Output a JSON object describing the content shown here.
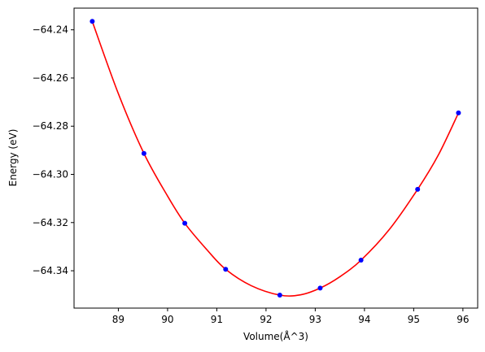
{
  "chart_data": {
    "type": "scatter",
    "title": "",
    "xlabel": "Volume(Å^3)",
    "ylabel": "Energy (eV)",
    "xlim": [
      88.1,
      96.3
    ],
    "ylim": [
      -64.3555,
      -64.231
    ],
    "xticks": [
      89,
      90,
      91,
      92,
      93,
      94,
      95,
      96
    ],
    "xtick_labels": [
      "89",
      "90",
      "91",
      "92",
      "93",
      "94",
      "95",
      "96"
    ],
    "yticks": [
      -64.34,
      -64.32,
      -64.3,
      -64.28,
      -64.26,
      -64.24
    ],
    "ytick_labels": [
      "−64.34",
      "−64.32",
      "−64.30",
      "−64.28",
      "−64.26",
      "−64.24"
    ],
    "grid": false,
    "series": [
      {
        "kind": "points",
        "color": "#0000ff",
        "x": [
          88.47,
          89.52,
          90.35,
          91.18,
          92.28,
          93.1,
          93.93,
          95.08,
          95.91
        ],
        "y": [
          -64.2365,
          -64.2913,
          -64.3203,
          -64.3394,
          -64.3501,
          -64.3472,
          -64.3356,
          -64.3062,
          -64.2745
        ]
      },
      {
        "kind": "fit-curve",
        "color": "#ff0000",
        "x": [
          88.47,
          89.0,
          89.52,
          90.0,
          90.35,
          90.8,
          91.18,
          91.7,
          92.28,
          92.7,
          93.1,
          93.5,
          93.93,
          94.5,
          95.08,
          95.5,
          95.91
        ],
        "y": [
          -64.2365,
          -64.2665,
          -64.2913,
          -64.309,
          -64.3203,
          -64.3313,
          -64.3394,
          -64.3462,
          -64.3501,
          -64.35,
          -64.3472,
          -64.3425,
          -64.3356,
          -64.323,
          -64.3062,
          -64.292,
          -64.2745
        ]
      }
    ]
  }
}
